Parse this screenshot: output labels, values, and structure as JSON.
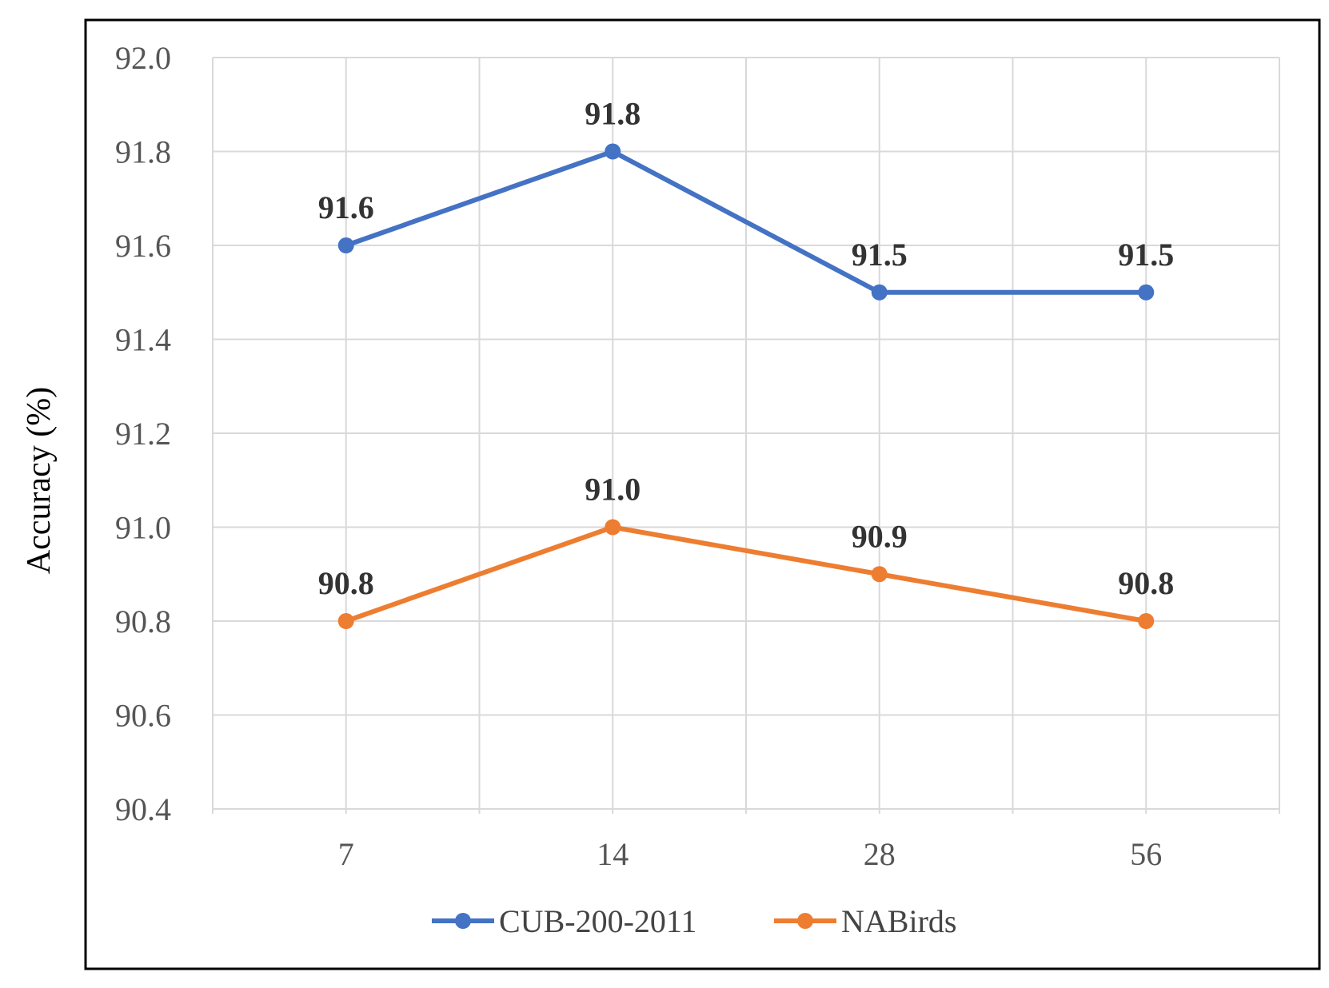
{
  "chart_data": {
    "type": "line",
    "title": "",
    "xlabel": "",
    "ylabel": "Accuracy (%)",
    "categories": [
      "7",
      "14",
      "28",
      "56"
    ],
    "ylim": [
      90.4,
      92.0
    ],
    "yticks": [
      "90.4",
      "90.6",
      "90.8",
      "91.0",
      "91.2",
      "91.4",
      "91.6",
      "91.8",
      "92.0"
    ],
    "grid": true,
    "legend_position": "bottom",
    "series": [
      {
        "name": "CUB-200-2011",
        "color": "#4472c4",
        "values": [
          91.6,
          91.8,
          91.5,
          91.5
        ],
        "labels": [
          "91.6",
          "91.8",
          "91.5",
          "91.5"
        ]
      },
      {
        "name": "NABirds",
        "color": "#ed7d31",
        "values": [
          90.8,
          91.0,
          90.9,
          90.8
        ],
        "labels": [
          "90.8",
          "91.0",
          "90.9",
          "90.8"
        ]
      }
    ]
  }
}
